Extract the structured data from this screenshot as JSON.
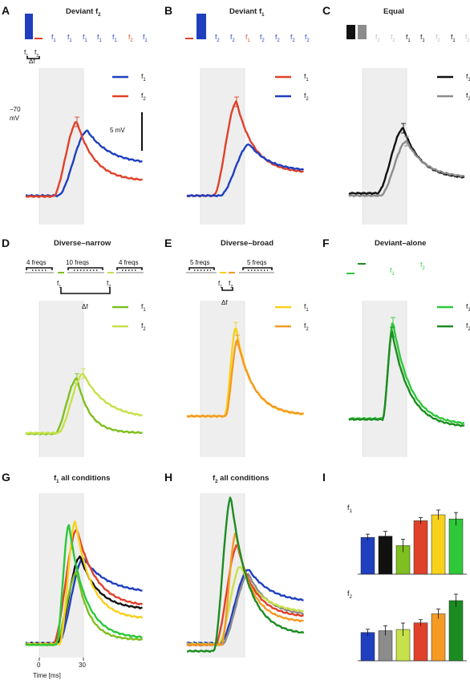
{
  "colors": {
    "blue": "#1f3fbf",
    "red": "#e0412a",
    "black": "#111111",
    "gray": "#8c8c8c",
    "lightgray": "#bfbfbf",
    "green_mid": "#7fbf1f",
    "green_light": "#c8e04a",
    "yellow": "#f7d11c",
    "orange": "#f59a23",
    "green_bright": "#2ec83a",
    "green_dark": "#1c8c22",
    "shade": "#eeeeee"
  },
  "panels": {
    "A": {
      "letter": "A",
      "title": "Deviant f",
      "title_sub": "2"
    },
    "B": {
      "letter": "B",
      "title": "Deviant f",
      "title_sub": "1"
    },
    "C": {
      "letter": "C",
      "title": "Equal"
    },
    "D": {
      "letter": "D",
      "title": "Diverse–narrow",
      "left_label": "4 freqs",
      "mid_label": "10 freqs",
      "right_label": "4 freqs"
    },
    "E": {
      "letter": "E",
      "title": "Diverse–broad",
      "left_label": "5 freqs",
      "right_label": "5 freqs"
    },
    "F": {
      "letter": "F",
      "title": "Deviant–alone"
    },
    "G": {
      "letter": "G",
      "title": "f",
      "title_sub": "1",
      "title_rest": " all conditions"
    },
    "H": {
      "letter": "H",
      "title": "f",
      "title_sub": "2",
      "title_rest": " all conditions"
    },
    "I": {
      "letter": "I"
    }
  },
  "labels": {
    "delta_f": "Δf",
    "voltage_value": "−70",
    "voltage_unit": "mV",
    "scalebar": "5 mV",
    "xtick_0": "0",
    "xtick_30": "30",
    "xlabel": "Time [ms]",
    "f": "f",
    "sub1": "1",
    "sub2": "2"
  },
  "chart_data": [
    {
      "panel": "A",
      "type": "line",
      "series": [
        {
          "name": "f1"
        },
        {
          "name": "f2"
        }
      ]
    },
    {
      "panel": "B",
      "type": "line",
      "series": [
        {
          "name": "f1"
        },
        {
          "name": "f2"
        }
      ]
    },
    {
      "panel": "C",
      "type": "line",
      "series": [
        {
          "name": "f1"
        },
        {
          "name": "f2"
        }
      ]
    },
    {
      "panel": "D",
      "type": "line",
      "series": [
        {
          "name": "f1"
        },
        {
          "name": "f2"
        }
      ]
    },
    {
      "panel": "E",
      "type": "line",
      "series": [
        {
          "name": "f1"
        },
        {
          "name": "f2"
        }
      ]
    },
    {
      "panel": "F",
      "type": "line",
      "series": [
        {
          "name": "f1"
        },
        {
          "name": "f2"
        }
      ]
    },
    {
      "panel": "G",
      "type": "line",
      "xticks": [
        "0",
        "30"
      ],
      "xlabel": "Time [ms]"
    },
    {
      "panel": "H",
      "type": "line"
    },
    {
      "panel": "I",
      "type": "bar",
      "rows": [
        {
          "label": "f1",
          "colors": [
            "blue",
            "black",
            "green_mid",
            "red",
            "yellow",
            "green_bright"
          ],
          "values": [
            0.62,
            0.64,
            0.48,
            0.9,
            1.0,
            0.93
          ]
        },
        {
          "label": "f2",
          "colors": [
            "blue",
            "gray",
            "green_light",
            "red",
            "orange",
            "green_dark"
          ],
          "values": [
            0.47,
            0.5,
            0.52,
            0.63,
            0.78,
            1.0
          ]
        }
      ]
    }
  ]
}
